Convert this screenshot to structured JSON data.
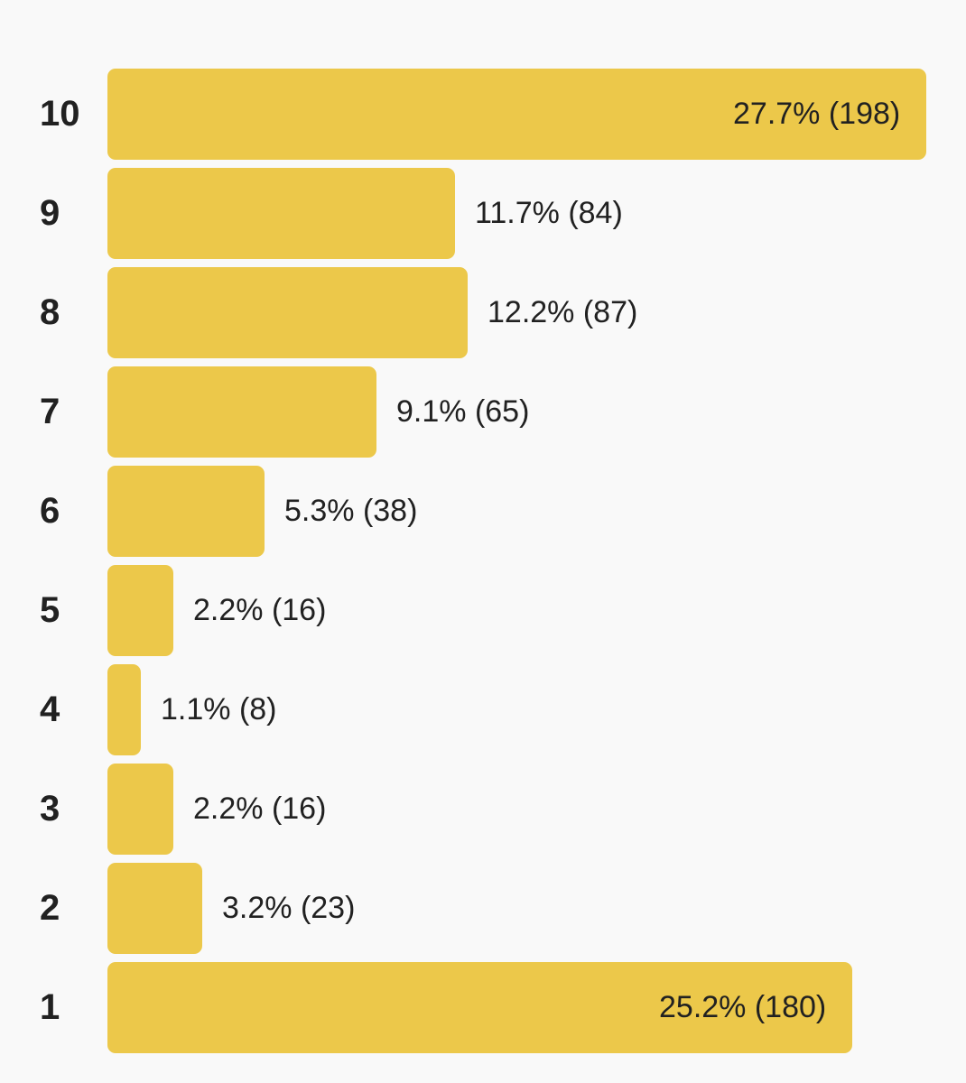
{
  "chart_data": {
    "type": "bar",
    "orientation": "horizontal",
    "categories": [
      "10",
      "9",
      "8",
      "7",
      "6",
      "5",
      "4",
      "3",
      "2",
      "1"
    ],
    "values": [
      198,
      84,
      87,
      65,
      38,
      16,
      8,
      16,
      23,
      180
    ],
    "percentages": [
      27.7,
      11.7,
      12.2,
      9.1,
      5.3,
      2.2,
      1.1,
      2.2,
      3.2,
      25.2
    ],
    "labels": [
      "27.7% (198)",
      "11.7% (84)",
      "12.2% (87)",
      "9.1% (65)",
      "5.3% (38)",
      "2.2% (16)",
      "1.1% (8)",
      "2.2% (16)",
      "3.2% (23)",
      "25.2% (180)"
    ],
    "title": "",
    "xlabel": "",
    "ylabel": "",
    "xlim": [
      0,
      198
    ],
    "grid": false,
    "legend": "none",
    "bar_color": "#ecc84a",
    "text_color": "#212121",
    "background_color": "#f9f9f9"
  }
}
